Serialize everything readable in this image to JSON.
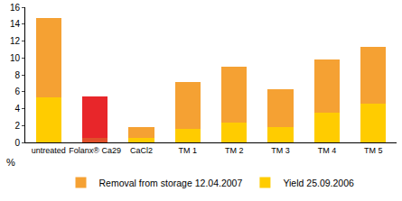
{
  "chart_data": {
    "type": "bar",
    "stacked": true,
    "grid": false,
    "legend": "bottom",
    "y_label": "%",
    "categories": [
      "untreated",
      "Folanx® Ca29",
      "CaCl2",
      "TM 1",
      "TM 2",
      "TM 3",
      "TM 4",
      "TM 5"
    ],
    "series": [
      {
        "name": "Yield 25.09.2006",
        "color": "#ffcc00",
        "colors": [
          "#ffcc00",
          "#e0502a",
          "#ffcc00",
          "#ffcc00",
          "#ffcc00",
          "#ffcc00",
          "#ffcc00",
          "#ffcc00"
        ],
        "values": [
          5.3,
          0.5,
          0.5,
          1.6,
          2.3,
          1.8,
          3.5,
          4.6
        ]
      },
      {
        "name": "Removal from storage 12.04.2007",
        "color": "#f5a133",
        "colors": [
          "#f5a133",
          "#e8262a",
          "#f5a133",
          "#f5a133",
          "#f5a133",
          "#f5a133",
          "#f5a133",
          "#f5a133"
        ],
        "values": [
          9.4,
          4.9,
          1.3,
          5.6,
          6.7,
          4.5,
          6.3,
          6.7
        ]
      }
    ],
    "ylim": [
      0,
      16
    ],
    "yticks": [
      0,
      2,
      4,
      6,
      8,
      10,
      12,
      14,
      16
    ]
  }
}
